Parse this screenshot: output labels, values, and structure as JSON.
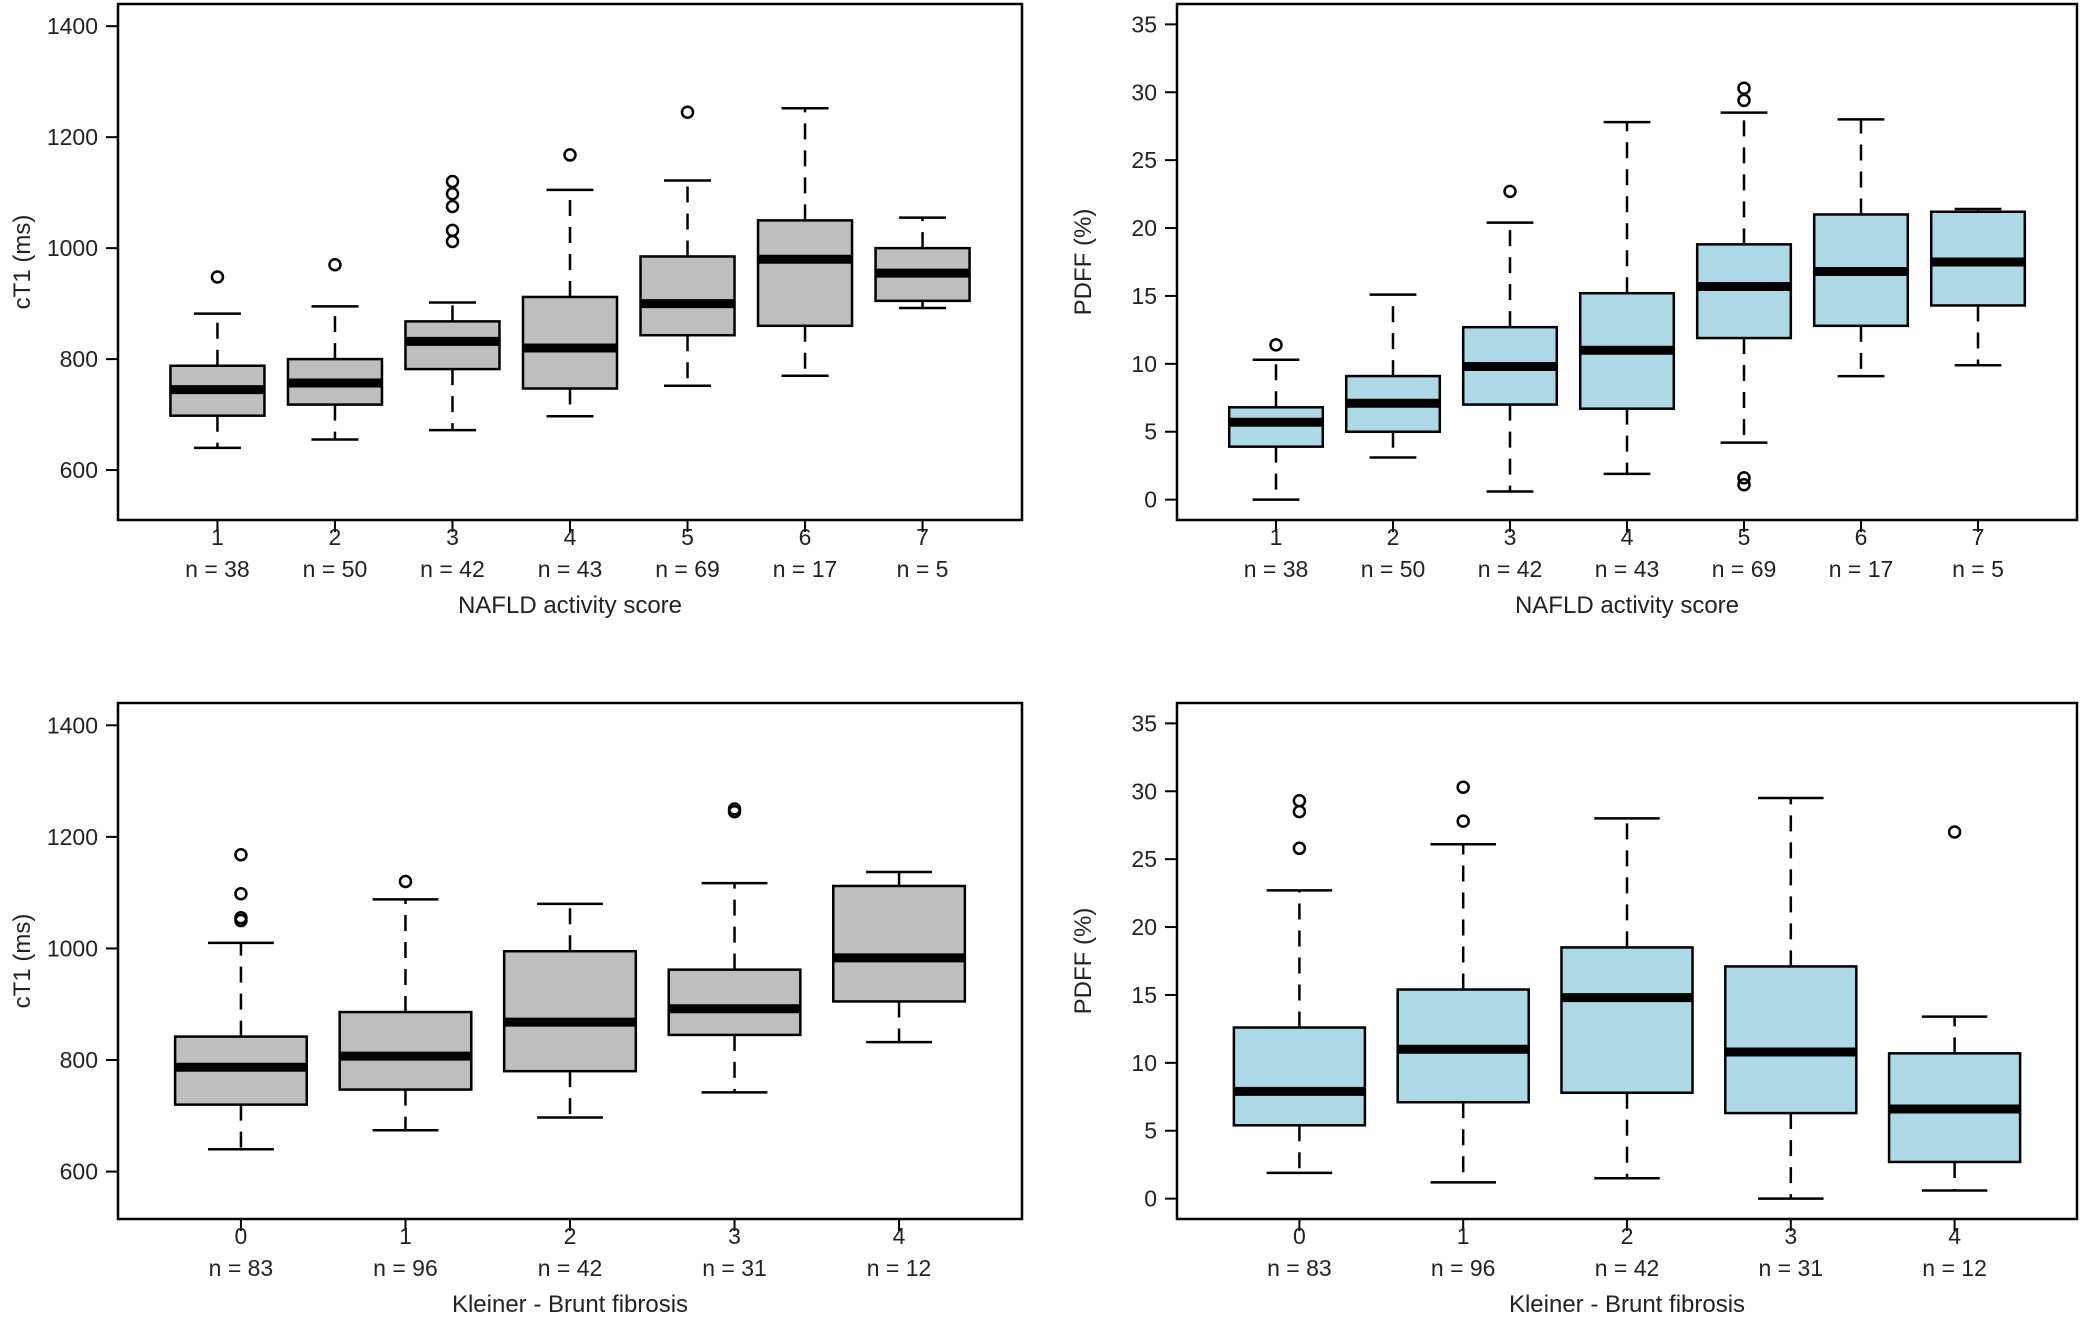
{
  "figure": {
    "colors": {
      "grey_box": "#bebebe",
      "blue_box": "#add8e6",
      "ink": "#000000",
      "text": "#222222"
    }
  },
  "chart_data": [
    {
      "type": "boxplot",
      "panel": "top-left",
      "xlabel": "NAFLD activity score",
      "ylabel": "cT1 (ms)",
      "ylim": [
        510,
        1440
      ],
      "yticks": [
        600,
        800,
        1000,
        1200,
        1400
      ],
      "fill": "#bebebe",
      "categories": [
        "1",
        "2",
        "3",
        "4",
        "5",
        "6",
        "7"
      ],
      "counts": [
        "n = 38",
        "n = 50",
        "n = 42",
        "n = 43",
        "n = 69",
        "n = 17",
        "n = 5"
      ],
      "boxes": [
        {
          "whisker_low": 640,
          "q1": 698,
          "median": 745,
          "q3": 788,
          "whisker_high": 882,
          "outliers": [
            948
          ]
        },
        {
          "whisker_low": 655,
          "q1": 718,
          "median": 757,
          "q3": 800,
          "whisker_high": 895,
          "outliers": [
            970
          ]
        },
        {
          "whisker_low": 672,
          "q1": 782,
          "median": 832,
          "q3": 868,
          "whisker_high": 902,
          "outliers": [
            1012,
            1032,
            1075,
            1098,
            1120
          ]
        },
        {
          "whisker_low": 697,
          "q1": 747,
          "median": 820,
          "q3": 912,
          "whisker_high": 1105,
          "outliers": [
            1168
          ]
        },
        {
          "whisker_low": 752,
          "q1": 843,
          "median": 900,
          "q3": 985,
          "whisker_high": 1122,
          "outliers": [
            1245
          ]
        },
        {
          "whisker_low": 770,
          "q1": 860,
          "median": 980,
          "q3": 1050,
          "whisker_high": 1252,
          "outliers": []
        },
        {
          "whisker_low": 892,
          "q1": 905,
          "median": 955,
          "q3": 1000,
          "whisker_high": 1055,
          "outliers": []
        }
      ]
    },
    {
      "type": "boxplot",
      "panel": "top-right",
      "xlabel": "NAFLD activity score",
      "ylabel": "PDFF (%)",
      "ylim": [
        -1.5,
        36.5
      ],
      "yticks": [
        0,
        5,
        10,
        15,
        20,
        25,
        30,
        35
      ],
      "fill": "#add8e6",
      "categories": [
        "1",
        "2",
        "3",
        "4",
        "5",
        "6",
        "7"
      ],
      "counts": [
        "n = 38",
        "n = 50",
        "n = 42",
        "n = 43",
        "n = 69",
        "n = 17",
        "n = 5"
      ],
      "boxes": [
        {
          "whisker_low": 0,
          "q1": 3.9,
          "median": 5.7,
          "q3": 6.8,
          "whisker_high": 10.3,
          "outliers": [
            11.4
          ]
        },
        {
          "whisker_low": 3.1,
          "q1": 5.0,
          "median": 7.1,
          "q3": 9.1,
          "whisker_high": 15.1,
          "outliers": []
        },
        {
          "whisker_low": 0.6,
          "q1": 7.0,
          "median": 9.8,
          "q3": 12.7,
          "whisker_high": 20.4,
          "outliers": [
            22.7
          ]
        },
        {
          "whisker_low": 1.9,
          "q1": 6.7,
          "median": 11.0,
          "q3": 15.2,
          "whisker_high": 27.8,
          "outliers": []
        },
        {
          "whisker_low": 4.2,
          "q1": 11.9,
          "median": 15.7,
          "q3": 18.8,
          "whisker_high": 28.5,
          "outliers": [
            1.1,
            1.6,
            29.4,
            30.3
          ]
        },
        {
          "whisker_low": 9.1,
          "q1": 12.8,
          "median": 16.8,
          "q3": 21.0,
          "whisker_high": 28.0,
          "outliers": []
        },
        {
          "whisker_low": 9.9,
          "q1": 14.3,
          "median": 17.5,
          "q3": 21.2,
          "whisker_high": 21.4,
          "outliers": []
        }
      ]
    },
    {
      "type": "boxplot",
      "panel": "bottom-left",
      "xlabel": "Kleiner - Brunt fibrosis",
      "ylabel": "cT1 (ms)",
      "ylim": [
        515,
        1440
      ],
      "yticks": [
        600,
        800,
        1000,
        1200,
        1400
      ],
      "fill": "#bebebe",
      "categories": [
        "0",
        "1",
        "2",
        "3",
        "4"
      ],
      "counts": [
        "n = 83",
        "n = 96",
        "n = 42",
        "n = 31",
        "n = 12"
      ],
      "boxes": [
        {
          "whisker_low": 640,
          "q1": 720,
          "median": 787,
          "q3": 842,
          "whisker_high": 1010,
          "outliers": [
            1050,
            1055,
            1098,
            1168
          ]
        },
        {
          "whisker_low": 674,
          "q1": 747,
          "median": 807,
          "q3": 886,
          "whisker_high": 1088,
          "outliers": [
            1120
          ]
        },
        {
          "whisker_low": 697,
          "q1": 780,
          "median": 868,
          "q3": 995,
          "whisker_high": 1080,
          "outliers": []
        },
        {
          "whisker_low": 742,
          "q1": 845,
          "median": 892,
          "q3": 962,
          "whisker_high": 1117,
          "outliers": [
            1245,
            1250
          ]
        },
        {
          "whisker_low": 832,
          "q1": 905,
          "median": 983,
          "q3": 1112,
          "whisker_high": 1137,
          "outliers": []
        }
      ]
    },
    {
      "type": "boxplot",
      "panel": "bottom-right",
      "xlabel": "Kleiner - Brunt fibrosis",
      "ylabel": "PDFF (%)",
      "ylim": [
        -1.5,
        36.5
      ],
      "yticks": [
        0,
        5,
        10,
        15,
        20,
        25,
        30,
        35
      ],
      "fill": "#add8e6",
      "categories": [
        "0",
        "1",
        "2",
        "3",
        "4"
      ],
      "counts": [
        "n = 83",
        "n = 96",
        "n = 42",
        "n = 31",
        "n = 12"
      ],
      "boxes": [
        {
          "whisker_low": 1.9,
          "q1": 5.4,
          "median": 7.9,
          "q3": 12.6,
          "whisker_high": 22.7,
          "outliers": [
            25.8,
            28.5,
            29.3
          ]
        },
        {
          "whisker_low": 1.2,
          "q1": 7.1,
          "median": 11.0,
          "q3": 15.4,
          "whisker_high": 26.1,
          "outliers": [
            27.8,
            30.3
          ]
        },
        {
          "whisker_low": 1.5,
          "q1": 7.8,
          "median": 14.8,
          "q3": 18.5,
          "whisker_high": 28.0,
          "outliers": []
        },
        {
          "whisker_low": 0,
          "q1": 6.3,
          "median": 10.8,
          "q3": 17.1,
          "whisker_high": 29.5,
          "outliers": []
        },
        {
          "whisker_low": 0.6,
          "q1": 2.7,
          "median": 6.6,
          "q3": 10.7,
          "whisker_high": 13.4,
          "outliers": [
            27.0
          ]
        }
      ]
    }
  ]
}
